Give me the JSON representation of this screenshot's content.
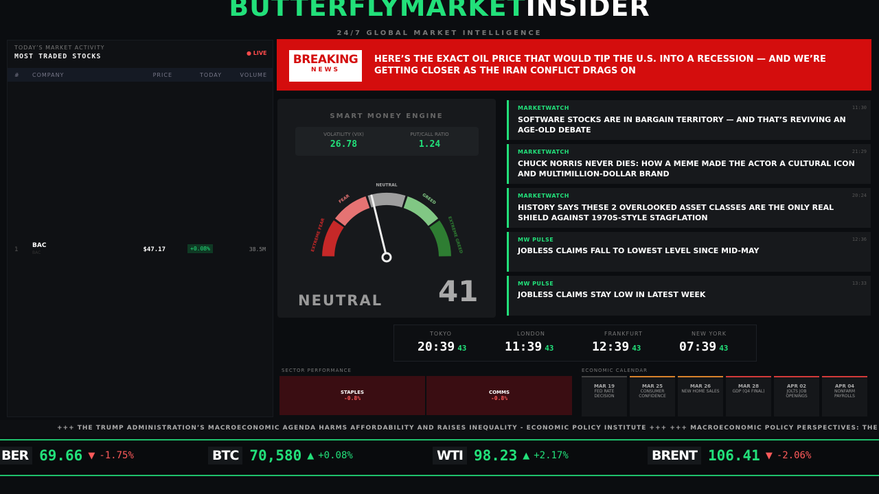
{
  "header": {
    "brand": "BUTTERFLYMARKET",
    "brand_accent": "INSIDER",
    "tagline": "24/7 GLOBAL MARKET INTELLIGENCE"
  },
  "stocks": {
    "kicker": "TODAY’S MARKET ACTIVITY",
    "title": "MOST TRADED STOCKS",
    "live": "LIVE",
    "columns": [
      "#",
      "COMPANY",
      "PRICE",
      "TODAY",
      "VOLUME"
    ],
    "rows": [
      {
        "rank": 1,
        "symbol": "BAC",
        "sub": "BAC",
        "price": "$47.17",
        "change": "+0.08%",
        "volume": "38.5M"
      }
    ]
  },
  "breaking": {
    "badge_top": "BREAKING",
    "badge_bottom": "NEWS",
    "headline": "HERE’S THE EXACT OIL PRICE THAT WOULD TIP THE U.S. INTO A RECESSION — AND WE’RE GETTING CLOSER AS THE IRAN CONFLICT DRAGS ON"
  },
  "gauge": {
    "title": "SMART MONEY ENGINE",
    "metrics": [
      {
        "label": "VOLATILITY (VIX)",
        "value": "26.78"
      },
      {
        "label": "PUT/CALL RATIO",
        "value": "1.24"
      }
    ],
    "zones": [
      "EXTREME FEAR",
      "FEAR",
      "NEUTRAL",
      "GREED",
      "EXTREME GREED"
    ],
    "sentiment": "NEUTRAL",
    "value": 41
  },
  "news": [
    {
      "source": "MARKETWATCH",
      "time": "11:30",
      "headline": "SOFTWARE STOCKS ARE IN BARGAIN TERRITORY — AND THAT’S REVIVING AN AGE-OLD DEBATE"
    },
    {
      "source": "MARKETWATCH",
      "time": "21:29",
      "headline": "CHUCK NORRIS NEVER DIES: HOW A MEME MADE THE ACTOR A CULTURAL ICON AND MULTIMILLION-DOLLAR BRAND"
    },
    {
      "source": "MARKETWATCH",
      "time": "20:24",
      "headline": "HISTORY SAYS THESE 2 OVERLOOKED ASSET CLASSES ARE THE ONLY REAL SHIELD AGAINST 1970S-STYLE STAGFLATION"
    },
    {
      "source": "MW PULSE",
      "time": "12:36",
      "headline": "JOBLESS CLAIMS FALL TO LOWEST LEVEL SINCE MID-MAY"
    },
    {
      "source": "MW PULSE",
      "time": "13:33",
      "headline": "JOBLESS CLAIMS STAY LOW IN LATEST WEEK"
    }
  ],
  "clocks": [
    {
      "city": "TOKYO",
      "time": "20:39",
      "seconds": "43"
    },
    {
      "city": "LONDON",
      "time": "11:39",
      "seconds": "43"
    },
    {
      "city": "FRANKFURT",
      "time": "12:39",
      "seconds": "43"
    },
    {
      "city": "NEW YORK",
      "time": "07:39",
      "seconds": "43"
    }
  ],
  "sectors": {
    "title": "SECTOR PERFORMANCE",
    "tiles": [
      {
        "name": "STAPLES",
        "change": "-0.8%"
      },
      {
        "name": "COMMS",
        "change": "-0.8%"
      }
    ]
  },
  "calendar": {
    "title": "ECONOMIC CALENDAR",
    "events": [
      {
        "date": "MAR 19",
        "name": "FED RATE DECISION"
      },
      {
        "date": "MAR 25",
        "name": "CONSUMER CONFIDENCE"
      },
      {
        "date": "MAR 26",
        "name": "NEW HOME SALES"
      },
      {
        "date": "MAR 28",
        "name": "GDP (Q4 FINAL)"
      },
      {
        "date": "APR 02",
        "name": "JOLTS JOB OPENINGS"
      },
      {
        "date": "APR 04",
        "name": "NONFARM PAYROLLS"
      }
    ]
  },
  "ticker": "+++ THE TRUMP ADMINISTRATION’S MACROECONOMIC AGENDA HARMS AFFORDABILITY AND RAISES INEQUALITY - ECONOMIC POLICY INSTITUTE +++ +++ MACROECONOMIC POLICY PERSPECTIVES: THE MACROECONOMIC",
  "prices": [
    {
      "symbol": "BER",
      "price": "69.66",
      "arrow": "▼",
      "change": "-1.75%"
    },
    {
      "symbol": "BTC",
      "price": "70,580",
      "arrow": "▲",
      "change": "+0.08%"
    },
    {
      "symbol": "WTI",
      "price": "98.23",
      "arrow": "▲",
      "change": "+2.17%"
    },
    {
      "symbol": "BRENT",
      "price": "106.41",
      "arrow": "▼",
      "change": "-2.06%"
    }
  ]
}
